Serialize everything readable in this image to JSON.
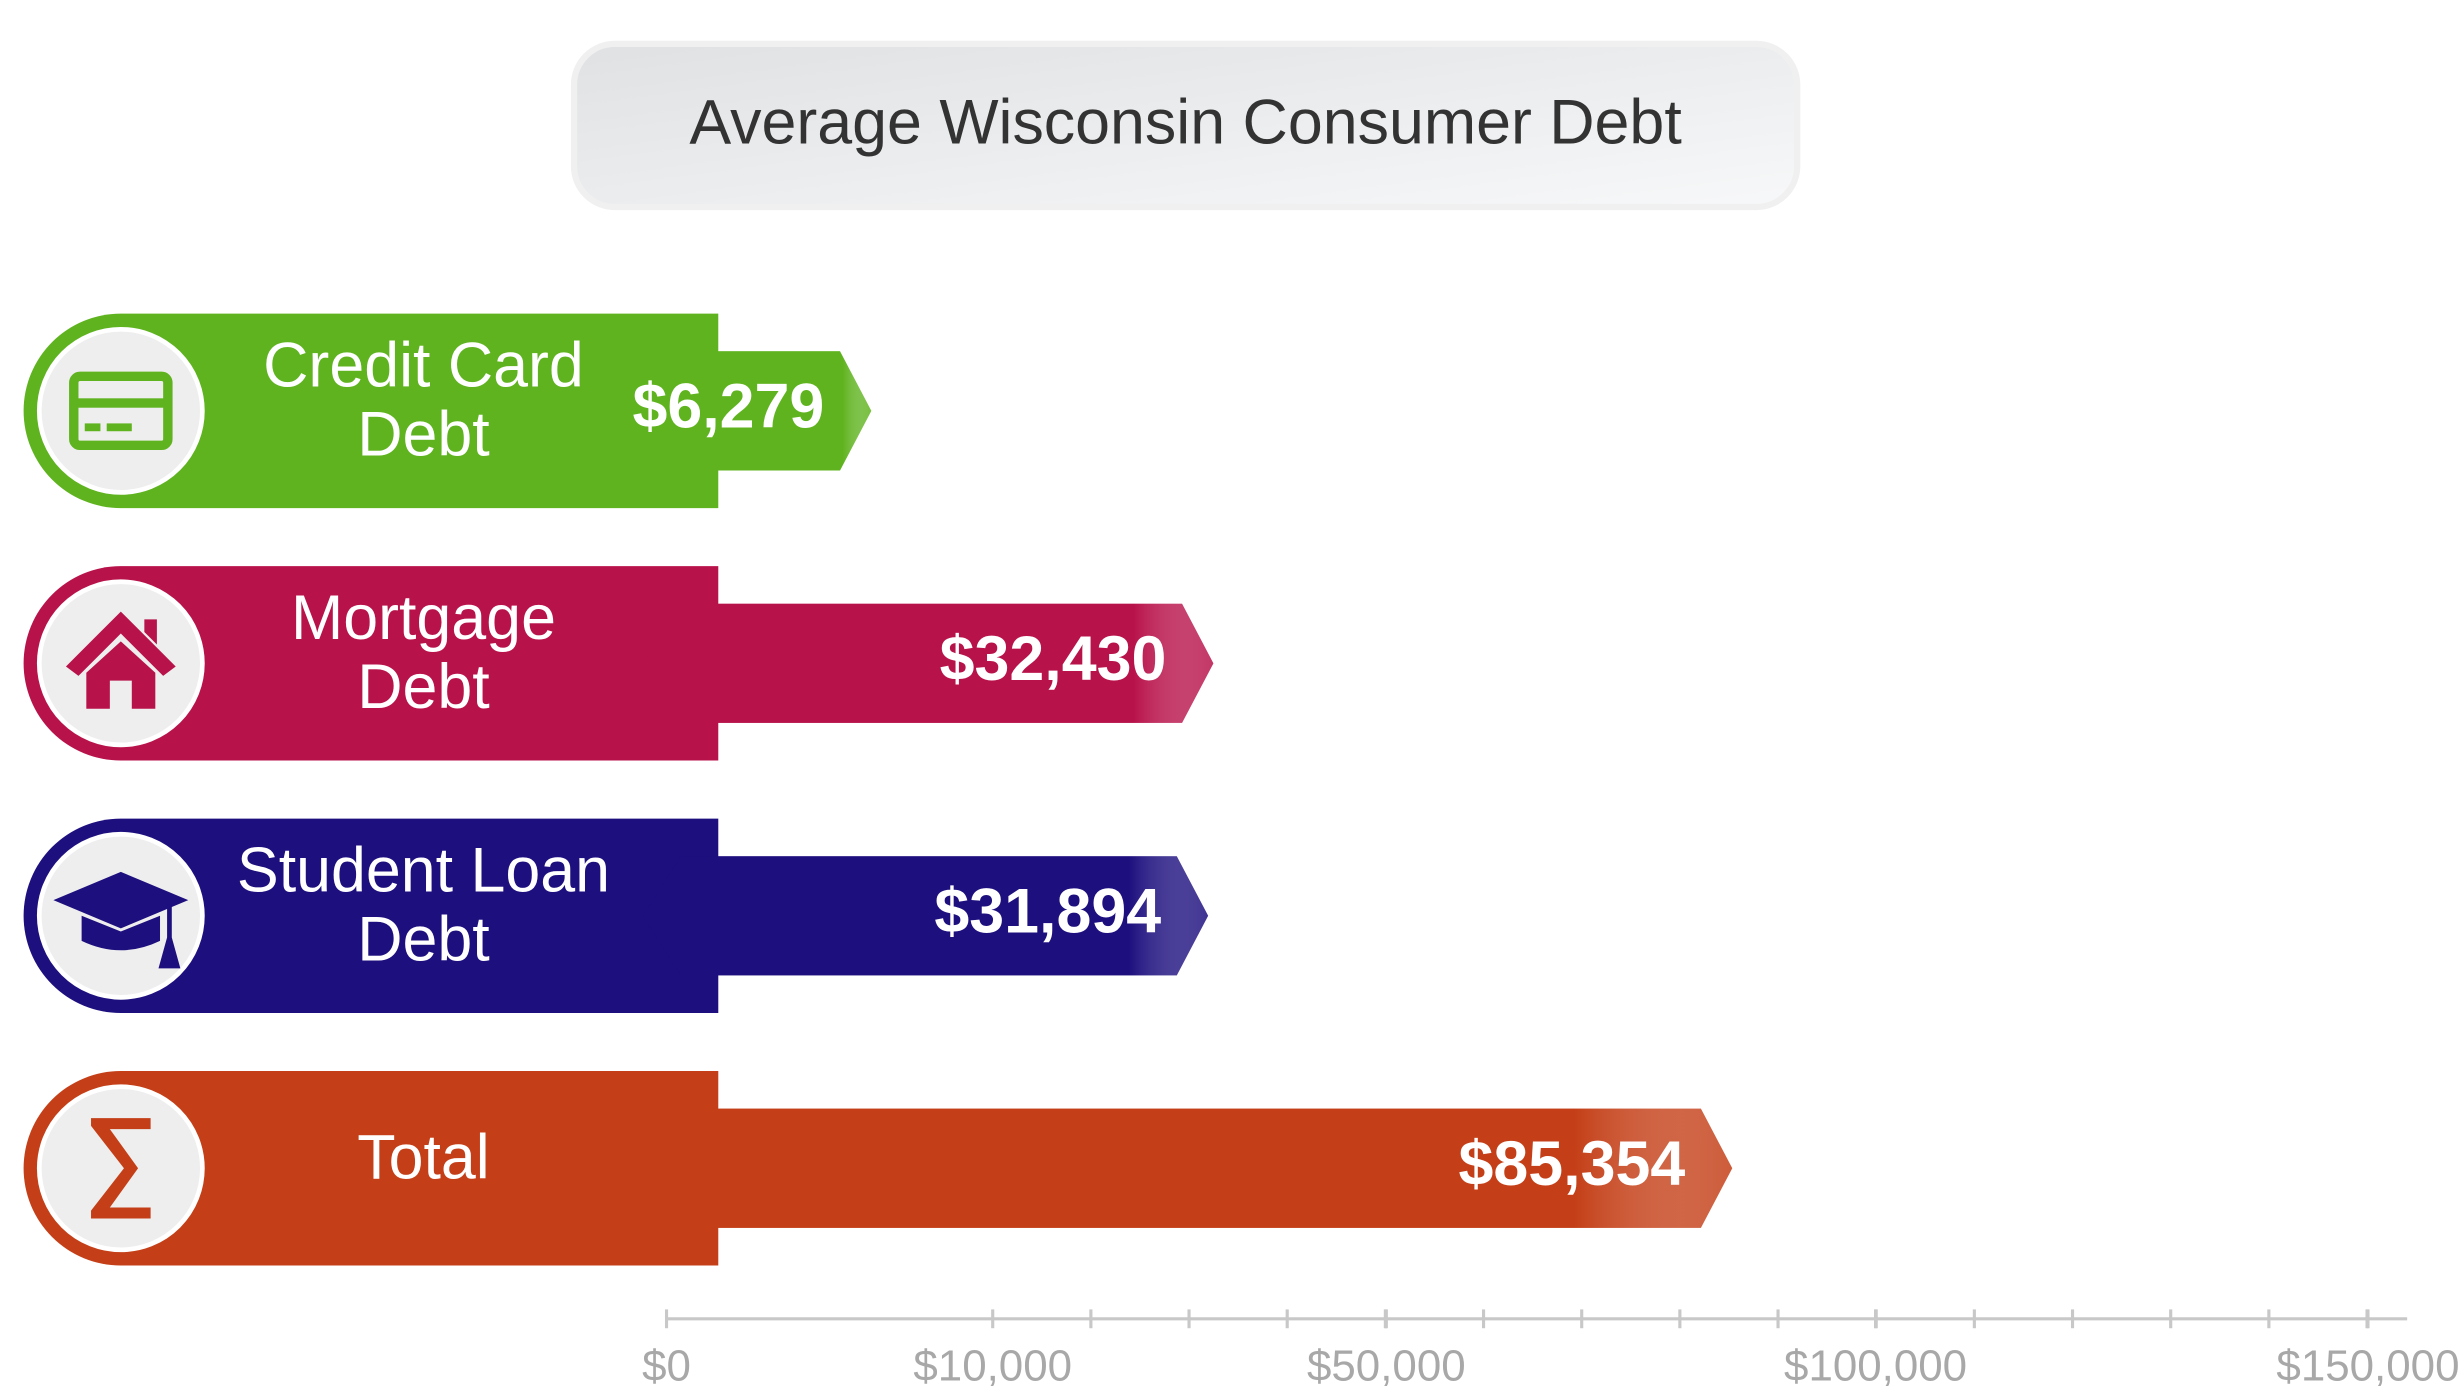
{
  "chart_data": {
    "type": "bar",
    "orientation": "horizontal",
    "title": "Average Wisconsin Consumer Debt",
    "categories": [
      [
        "Credit Card",
        "Debt"
      ],
      [
        "Mortgage",
        "Debt"
      ],
      [
        "Student Loan",
        "Debt"
      ],
      [
        "Total"
      ]
    ],
    "values": [
      6279,
      32430,
      31894,
      85354
    ],
    "value_labels": [
      "$6,279",
      "$32,430",
      "$31,894",
      "$85,354"
    ],
    "colors": [
      "#5fb31f",
      "#b8124a",
      "#1d0f7e",
      "#c43f17"
    ],
    "xlim": [
      0,
      150000
    ],
    "xticks": [
      {
        "value": 0,
        "label": "$0"
      },
      {
        "value": 10000,
        "label": "$10,000"
      },
      {
        "value": 50000,
        "label": "$50,000"
      },
      {
        "value": 100000,
        "label": "$100,000"
      },
      {
        "value": 150000,
        "label": "$150,000"
      }
    ]
  }
}
